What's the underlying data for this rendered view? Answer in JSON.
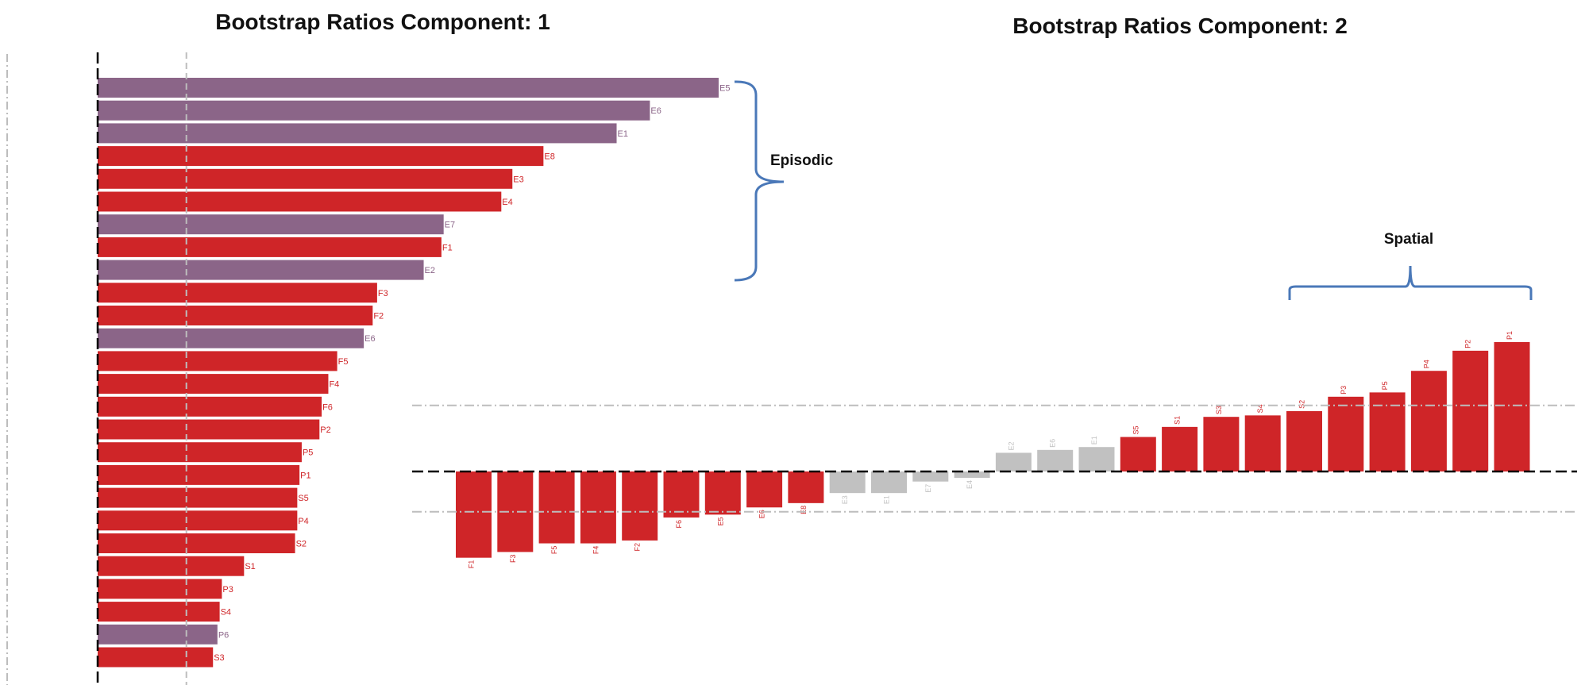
{
  "colors": {
    "episodic": "#8b6588",
    "red": "#cf2528",
    "gray": "#c1c1c1",
    "brace": "#4a78b8",
    "threshold": "#bdbdbd",
    "axis": "#000000"
  },
  "chart_data": [
    {
      "type": "bar",
      "orientation": "horizontal",
      "title": "Bootstrap Ratios Component: 1",
      "xlim": [
        -2.2,
        14.0
      ],
      "thresholds": [
        0,
        2
      ],
      "categories": [
        "E5",
        "E6",
        "E1",
        "E8",
        "E3",
        "E4",
        "E7",
        "F1",
        "E2",
        "F3",
        "F2",
        "E6",
        "F5",
        "F4",
        "F6",
        "P2",
        "P5",
        "P1",
        "S5",
        "P4",
        "S2",
        "S1",
        "P3",
        "S4",
        "P6",
        "S3"
      ],
      "series": [
        {
          "values": [
            14.0,
            12.45,
            11.7,
            10.05,
            9.35,
            9.1,
            7.8,
            7.75,
            7.35,
            6.3,
            6.2,
            6.0,
            5.4,
            5.2,
            5.05,
            5.0,
            4.6,
            4.55,
            4.5,
            4.5,
            4.45,
            3.3,
            2.8,
            2.75,
            2.7,
            2.6
          ],
          "groups": [
            "episodic",
            "episodic",
            "episodic",
            "red",
            "red",
            "red",
            "episodic",
            "red",
            "episodic",
            "red",
            "red",
            "episodic",
            "red",
            "red",
            "red",
            "red",
            "red",
            "red",
            "red",
            "red",
            "red",
            "red",
            "red",
            "red",
            "episodic",
            "red"
          ]
        }
      ],
      "annotations": [
        {
          "type": "brace",
          "label": "Episodic"
        }
      ]
    },
    {
      "type": "bar",
      "orientation": "vertical",
      "title": "Bootstrap Ratios Component: 2",
      "ylim": [
        -3.5,
        5.0
      ],
      "thresholds": [
        -1,
        0,
        1
      ],
      "categories": [
        "F1",
        "F3",
        "F5",
        "F4",
        "F2",
        "F6",
        "E5",
        "E6",
        "E8",
        "E3",
        "E1",
        "E7",
        "E4",
        "E2",
        "E6",
        "E1",
        "S5",
        "S1",
        "S3",
        "S4",
        "S2",
        "P3",
        "P5",
        "P4",
        "P2",
        "P1"
      ],
      "series": [
        {
          "values": [
            -3.0,
            -2.8,
            -2.5,
            -2.5,
            -2.4,
            -1.6,
            -1.5,
            -1.25,
            -1.1,
            -0.75,
            -0.75,
            -0.35,
            -0.22,
            0.65,
            0.75,
            0.85,
            1.2,
            1.55,
            1.9,
            1.95,
            2.1,
            2.6,
            2.75,
            3.5,
            4.2,
            4.5
          ],
          "groups": [
            "red",
            "red",
            "red",
            "red",
            "red",
            "red",
            "red",
            "red",
            "red",
            "gray",
            "gray",
            "gray",
            "gray",
            "gray",
            "gray",
            "gray",
            "red",
            "red",
            "red",
            "red",
            "red",
            "red",
            "red",
            "red",
            "red",
            "red"
          ]
        }
      ],
      "annotations": [
        {
          "type": "brace",
          "label": "Spatial"
        }
      ]
    }
  ]
}
